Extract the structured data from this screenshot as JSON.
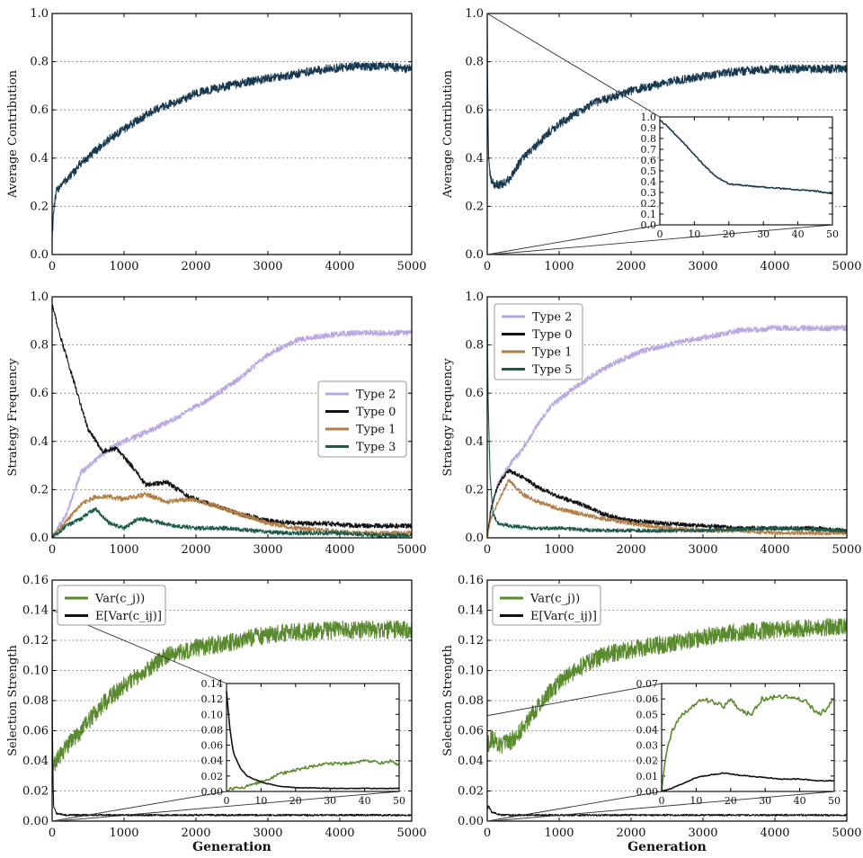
{
  "chart_data": [
    {
      "id": "p1",
      "type": "line",
      "title": "",
      "xlabel": "",
      "ylabel": "Average Contribution",
      "xlim": [
        0,
        5000
      ],
      "ylim": [
        0,
        1.0
      ],
      "xticks": [
        0,
        1000,
        2000,
        3000,
        4000,
        5000
      ],
      "yticks": [
        0.0,
        0.2,
        0.4,
        0.6,
        0.8,
        1.0
      ],
      "grid": "y-dotted",
      "legend": "none",
      "series": [
        {
          "color": "#17384f",
          "noise": 0.018,
          "x": [
            0,
            20,
            60,
            120,
            200,
            300,
            400,
            500,
            600,
            800,
            1000,
            1200,
            1500,
            1800,
            2000,
            2300,
            2600,
            3000,
            3400,
            3800,
            4200,
            4600,
            5000
          ],
          "y": [
            0.07,
            0.18,
            0.26,
            0.29,
            0.31,
            0.34,
            0.38,
            0.4,
            0.43,
            0.48,
            0.52,
            0.56,
            0.61,
            0.64,
            0.67,
            0.69,
            0.71,
            0.73,
            0.75,
            0.77,
            0.78,
            0.78,
            0.77
          ]
        }
      ]
    },
    {
      "id": "p2",
      "type": "line",
      "title": "",
      "xlabel": "",
      "ylabel": "Average Contribution",
      "xlim": [
        0,
        5000
      ],
      "ylim": [
        0,
        1.0
      ],
      "xticks": [
        0,
        1000,
        2000,
        3000,
        4000,
        5000
      ],
      "yticks": [
        0.0,
        0.2,
        0.4,
        0.6,
        0.8,
        1.0
      ],
      "grid": "y-dotted",
      "legend": "none",
      "series": [
        {
          "color": "#17384f",
          "noise": 0.018,
          "x": [
            0,
            5,
            20,
            50,
            100,
            200,
            300,
            400,
            500,
            700,
            900,
            1200,
            1500,
            1800,
            2000,
            2300,
            2600,
            3000,
            3500,
            4000,
            4500,
            5000
          ],
          "y": [
            1.0,
            0.7,
            0.38,
            0.31,
            0.29,
            0.29,
            0.31,
            0.36,
            0.4,
            0.46,
            0.52,
            0.58,
            0.63,
            0.66,
            0.68,
            0.7,
            0.72,
            0.74,
            0.76,
            0.77,
            0.77,
            0.77
          ]
        }
      ],
      "inset": {
        "xlim": [
          0,
          50
        ],
        "ylim": [
          0,
          1.0
        ],
        "xticks": [
          0,
          10,
          20,
          30,
          40,
          50
        ],
        "yticks": [
          0.0,
          0.1,
          0.2,
          0.3,
          0.4,
          0.5,
          0.6,
          0.7,
          0.8,
          0.9,
          1.0
        ],
        "zoom_source": {
          "x0": 0,
          "x1": 50
        },
        "series": [
          {
            "color": "#17384f",
            "noise": 0.006,
            "x": [
              0,
              2,
              5,
              8,
              12,
              16,
              20,
              23,
              26,
              30,
              34,
              38,
              42,
              46,
              50
            ],
            "y": [
              0.97,
              0.92,
              0.82,
              0.72,
              0.58,
              0.45,
              0.38,
              0.37,
              0.36,
              0.35,
              0.34,
              0.33,
              0.32,
              0.31,
              0.29
            ]
          }
        ]
      }
    },
    {
      "id": "p3",
      "type": "line",
      "title": "",
      "xlabel": "",
      "ylabel": "Strategy Frequency",
      "xlim": [
        0,
        5000
      ],
      "ylim": [
        0,
        1.0
      ],
      "xticks": [
        0,
        1000,
        2000,
        3000,
        4000,
        5000
      ],
      "yticks": [
        0.0,
        0.2,
        0.4,
        0.6,
        0.8,
        1.0
      ],
      "grid": "y-dotted",
      "legend": "center-right",
      "series": [
        {
          "name": "Type 2",
          "color": "#b9a7e0",
          "noise": 0.012,
          "x": [
            0,
            200,
            400,
            600,
            800,
            1000,
            1400,
            1800,
            2200,
            2600,
            3000,
            3400,
            3800,
            4200,
            4600,
            5000
          ],
          "y": [
            0.0,
            0.1,
            0.27,
            0.32,
            0.37,
            0.4,
            0.45,
            0.51,
            0.58,
            0.66,
            0.76,
            0.82,
            0.84,
            0.85,
            0.85,
            0.85
          ]
        },
        {
          "name": "Type 0",
          "color": "#111111",
          "noise": 0.01,
          "x": [
            0,
            100,
            300,
            500,
            700,
            900,
            1100,
            1300,
            1600,
            1900,
            2200,
            2600,
            3000,
            3400,
            3800,
            4200,
            4600,
            5000
          ],
          "y": [
            0.97,
            0.85,
            0.65,
            0.45,
            0.36,
            0.37,
            0.3,
            0.22,
            0.23,
            0.17,
            0.14,
            0.1,
            0.07,
            0.06,
            0.06,
            0.05,
            0.05,
            0.05
          ]
        },
        {
          "name": "Type 1",
          "color": "#b07e46",
          "noise": 0.01,
          "x": [
            0,
            200,
            400,
            600,
            800,
            1000,
            1300,
            1600,
            1900,
            2200,
            2600,
            3000,
            3400,
            3800,
            4200,
            4600,
            5000
          ],
          "y": [
            0.0,
            0.07,
            0.14,
            0.17,
            0.17,
            0.16,
            0.18,
            0.15,
            0.16,
            0.14,
            0.1,
            0.06,
            0.04,
            0.03,
            0.02,
            0.02,
            0.02
          ]
        },
        {
          "name": "Type 3",
          "color": "#1d5a4b",
          "noise": 0.009,
          "x": [
            0,
            200,
            400,
            600,
            800,
            1000,
            1200,
            1400,
            1700,
            2000,
            2400,
            2800,
            3200,
            3600,
            4000,
            4500,
            5000
          ],
          "y": [
            0.0,
            0.05,
            0.08,
            0.12,
            0.06,
            0.04,
            0.08,
            0.07,
            0.05,
            0.04,
            0.04,
            0.03,
            0.02,
            0.02,
            0.02,
            0.01,
            0.01
          ]
        }
      ]
    },
    {
      "id": "p4",
      "type": "line",
      "title": "",
      "xlabel": "",
      "ylabel": "Strategy Frequency",
      "xlim": [
        0,
        5000
      ],
      "ylim": [
        0,
        1.0
      ],
      "xticks": [
        0,
        1000,
        2000,
        3000,
        4000,
        5000
      ],
      "yticks": [
        0.0,
        0.2,
        0.4,
        0.6,
        0.8,
        1.0
      ],
      "grid": "y-dotted",
      "legend": "top-left",
      "series": [
        {
          "name": "Type 2",
          "color": "#b9a7e0",
          "noise": 0.012,
          "x": [
            0,
            50,
            150,
            300,
            500,
            700,
            900,
            1200,
            1500,
            1800,
            2100,
            2500,
            3000,
            3500,
            4000,
            4500,
            5000
          ],
          "y": [
            0.0,
            0.12,
            0.22,
            0.3,
            0.37,
            0.47,
            0.55,
            0.62,
            0.68,
            0.73,
            0.77,
            0.8,
            0.83,
            0.86,
            0.87,
            0.87,
            0.87
          ]
        },
        {
          "name": "Type 0",
          "color": "#111111",
          "noise": 0.009,
          "x": [
            0,
            50,
            150,
            300,
            500,
            700,
            1000,
            1300,
            1600,
            2000,
            2500,
            3000,
            3500,
            4000,
            4500,
            5000
          ],
          "y": [
            0.0,
            0.12,
            0.22,
            0.28,
            0.25,
            0.21,
            0.17,
            0.14,
            0.1,
            0.07,
            0.06,
            0.05,
            0.04,
            0.04,
            0.04,
            0.03
          ]
        },
        {
          "name": "Type 1",
          "color": "#b07e46",
          "noise": 0.009,
          "x": [
            0,
            50,
            150,
            300,
            500,
            700,
            1000,
            1300,
            1600,
            2000,
            2500,
            3000,
            3500,
            4000,
            4500,
            5000
          ],
          "y": [
            0.0,
            0.08,
            0.15,
            0.24,
            0.18,
            0.15,
            0.12,
            0.1,
            0.08,
            0.06,
            0.04,
            0.03,
            0.03,
            0.02,
            0.02,
            0.02
          ]
        },
        {
          "name": "Type 5",
          "color": "#1d5a4b",
          "noise": 0.008,
          "x": [
            0,
            10,
            40,
            80,
            150,
            300,
            600,
            1000,
            1500,
            2000,
            3000,
            4000,
            5000
          ],
          "y": [
            0.98,
            0.6,
            0.25,
            0.1,
            0.06,
            0.05,
            0.04,
            0.04,
            0.03,
            0.03,
            0.03,
            0.04,
            0.03
          ]
        }
      ]
    },
    {
      "id": "p5",
      "type": "line",
      "title": "",
      "xlabel": "Generation",
      "ylabel": "Selection Strength",
      "xlim": [
        0,
        5000
      ],
      "ylim": [
        0,
        0.16
      ],
      "xticks": [
        0,
        1000,
        2000,
        3000,
        4000,
        5000
      ],
      "yticks": [
        0.0,
        0.02,
        0.04,
        0.06,
        0.08,
        0.1,
        0.12,
        0.14,
        0.16
      ],
      "grid": "y-dotted",
      "legend": "top-left",
      "series": [
        {
          "name": "Var(c_j))",
          "color": "#5a8a2e",
          "noise": 0.006,
          "x": [
            0,
            50,
            200,
            400,
            600,
            800,
            1000,
            1300,
            1600,
            2000,
            2400,
            2800,
            3200,
            3600,
            4000,
            4500,
            5000
          ],
          "y": [
            0.035,
            0.04,
            0.05,
            0.06,
            0.072,
            0.082,
            0.09,
            0.1,
            0.11,
            0.115,
            0.118,
            0.122,
            0.125,
            0.126,
            0.127,
            0.127,
            0.127
          ]
        },
        {
          "name": "E[Var(c_ij)]",
          "color": "#111111",
          "noise": 0.0006,
          "x": [
            0,
            5,
            20,
            60,
            200,
            1000,
            2000,
            3000,
            4000,
            5000
          ],
          "y": [
            0.14,
            0.05,
            0.01,
            0.005,
            0.004,
            0.004,
            0.004,
            0.004,
            0.004,
            0.004
          ]
        }
      ],
      "inset": {
        "xlim": [
          0,
          50
        ],
        "ylim": [
          0,
          0.14
        ],
        "xticks": [
          0,
          10,
          20,
          30,
          40,
          50
        ],
        "yticks": [
          0.0,
          0.02,
          0.04,
          0.06,
          0.08,
          0.1,
          0.12,
          0.14
        ],
        "zoom_source": {
          "x0": 0,
          "x1": 50
        },
        "series": [
          {
            "color": "#5a8a2e",
            "noise": 0.002,
            "x": [
              0,
              5,
              10,
              15,
              20,
              25,
              30,
              35,
              40,
              45,
              48,
              50
            ],
            "y": [
              0.002,
              0.006,
              0.012,
              0.022,
              0.028,
              0.033,
              0.036,
              0.036,
              0.04,
              0.037,
              0.04,
              0.033
            ]
          },
          {
            "color": "#111111",
            "noise": 0.0004,
            "x": [
              0,
              1,
              2,
              4,
              6,
              10,
              15,
              20,
              30,
              40,
              50
            ],
            "y": [
              0.13,
              0.08,
              0.05,
              0.03,
              0.02,
              0.012,
              0.007,
              0.005,
              0.004,
              0.004,
              0.004
            ]
          }
        ]
      }
    },
    {
      "id": "p6",
      "type": "line",
      "title": "",
      "xlabel": "Generation",
      "ylabel": "Selection Strength",
      "xlim": [
        0,
        5000
      ],
      "ylim": [
        0,
        0.16
      ],
      "xticks": [
        0,
        1000,
        2000,
        3000,
        4000,
        5000
      ],
      "yticks": [
        0.0,
        0.02,
        0.04,
        0.06,
        0.08,
        0.1,
        0.12,
        0.14,
        0.16
      ],
      "grid": "y-dotted",
      "legend": "top-left",
      "series": [
        {
          "name": "Var(c_j))",
          "color": "#5a8a2e",
          "noise": 0.006,
          "x": [
            0,
            50,
            200,
            400,
            600,
            800,
            1000,
            1300,
            1600,
            2000,
            2400,
            2800,
            3200,
            3600,
            4000,
            4500,
            5000
          ],
          "y": [
            0.05,
            0.055,
            0.05,
            0.055,
            0.07,
            0.082,
            0.092,
            0.102,
            0.11,
            0.114,
            0.117,
            0.12,
            0.124,
            0.126,
            0.127,
            0.128,
            0.13
          ]
        },
        {
          "name": "E[Var(c_ij)]",
          "color": "#111111",
          "noise": 0.0006,
          "x": [
            0,
            20,
            60,
            200,
            1000,
            2000,
            3000,
            4000,
            5000
          ],
          "y": [
            0.008,
            0.01,
            0.006,
            0.004,
            0.004,
            0.004,
            0.004,
            0.004,
            0.004
          ]
        }
      ],
      "inset": {
        "xlim": [
          0,
          50
        ],
        "ylim": [
          0,
          0.07
        ],
        "xticks": [
          0,
          10,
          20,
          30,
          40,
          50
        ],
        "yticks": [
          0.0,
          0.01,
          0.02,
          0.03,
          0.04,
          0.05,
          0.06,
          0.07
        ],
        "zoom_source": {
          "x0": 0,
          "x1": 50
        },
        "series": [
          {
            "color": "#5a8a2e",
            "noise": 0.0015,
            "x": [
              0,
              1,
              3,
              6,
              9,
              12,
              15,
              18,
              20,
              23,
              26,
              29,
              31,
              34,
              38,
              42,
              45,
              47,
              50
            ],
            "y": [
              0.0,
              0.02,
              0.04,
              0.05,
              0.055,
              0.06,
              0.058,
              0.055,
              0.06,
              0.052,
              0.05,
              0.06,
              0.06,
              0.062,
              0.061,
              0.058,
              0.05,
              0.052,
              0.06
            ]
          },
          {
            "color": "#111111",
            "noise": 0.0003,
            "x": [
              0,
              3,
              6,
              9,
              12,
              15,
              18,
              21,
              25,
              30,
              35,
              40,
              45,
              50
            ],
            "y": [
              0.0,
              0.002,
              0.005,
              0.008,
              0.01,
              0.011,
              0.012,
              0.011,
              0.01,
              0.009,
              0.008,
              0.008,
              0.007,
              0.007
            ]
          }
        ]
      }
    }
  ]
}
